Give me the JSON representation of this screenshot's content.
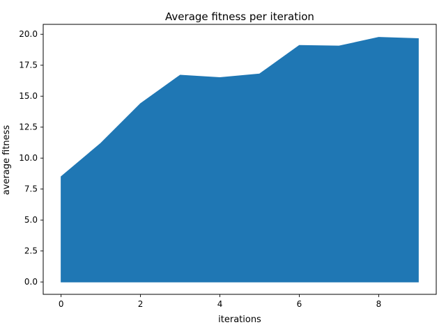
{
  "chart_data": {
    "type": "area",
    "title": "Average fitness per iteration",
    "xlabel": "iterations",
    "ylabel": "average fitness",
    "x": [
      0,
      1,
      2,
      3,
      4,
      5,
      6,
      7,
      8,
      9
    ],
    "series": [
      {
        "values": [
          8.5,
          11.2,
          14.4,
          16.7,
          16.5,
          16.8,
          19.1,
          19.05,
          19.75,
          19.65
        ],
        "color": "#1f77b4"
      }
    ],
    "xlim": [
      -0.45,
      9.45
    ],
    "ylim": [
      -1.0,
      20.8
    ],
    "xticks": [
      0,
      2,
      4,
      6,
      8
    ],
    "xtick_labels": [
      "0",
      "2",
      "4",
      "6",
      "8"
    ],
    "yticks": [
      0,
      2.5,
      5,
      7.5,
      10,
      12.5,
      15,
      17.5,
      20
    ],
    "ytick_labels": [
      "0.0",
      "2.5",
      "5.0",
      "7.5",
      "10.0",
      "12.5",
      "15.0",
      "17.5",
      "20.0"
    ],
    "grid": false,
    "legend": "none"
  }
}
